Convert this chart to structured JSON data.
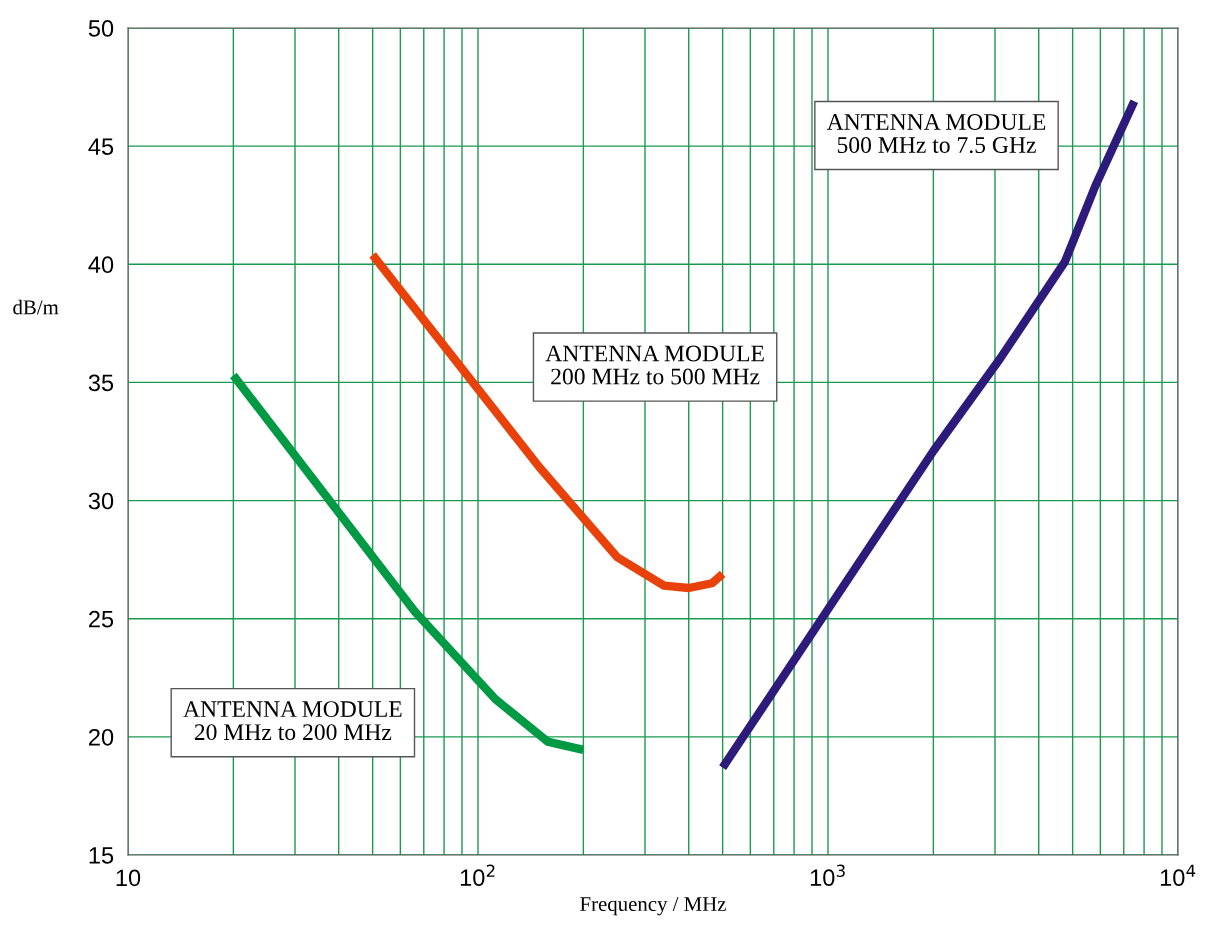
{
  "chart_data": {
    "type": "line",
    "xlabel": "Frequency / MHz",
    "ylabel": "dB/m",
    "log": "x",
    "grid": true,
    "marker": "none",
    "line_style": "solid",
    "xlim": [
      10,
      10000
    ],
    "ylim": [
      15,
      50
    ],
    "xticks": [
      10,
      {
        "value": 20,
        "label": null
      },
      {
        "value": 30,
        "label": null
      },
      {
        "value": 40,
        "label": null
      },
      {
        "value": 50,
        "label": null
      },
      {
        "value": 60,
        "label": null
      },
      {
        "value": 70,
        "label": null
      },
      {
        "value": 80,
        "label": null
      },
      {
        "value": 90,
        "label": null
      },
      {
        "value": 100,
        "label": "10$^{2}$"
      },
      {
        "value": 200,
        "label": null
      },
      {
        "value": 300,
        "label": null
      },
      {
        "value": 400,
        "label": null
      },
      {
        "value": 500,
        "label": null
      },
      {
        "value": 600,
        "label": null
      },
      {
        "value": 700,
        "label": null
      },
      {
        "value": 800,
        "label": null
      },
      {
        "value": 900,
        "label": null
      },
      {
        "value": 1000,
        "label": "10$^{3}$"
      },
      {
        "value": 2000,
        "label": null
      },
      {
        "value": 3000,
        "label": null
      },
      {
        "value": 4000,
        "label": null
      },
      {
        "value": 5000,
        "label": null
      },
      {
        "value": 6000,
        "label": null
      },
      {
        "value": 7000,
        "label": null
      },
      {
        "value": 8000,
        "label": null
      },
      {
        "value": 9000,
        "label": null
      },
      {
        "value": 10000,
        "label": "10$^{4}$"
      }
    ],
    "yticks": [
      15,
      20,
      25,
      30,
      35,
      40,
      45,
      50
    ],
    "series": [
      {
        "name": "ANTENNA MODULE\n20 MHz to 200 MHz",
        "color": "#009a44",
        "x": [
          20,
          66,
          112,
          158,
          200
        ],
        "values": [
          35.3,
          25.3,
          21.6,
          19.8,
          19.45
        ]
      },
      {
        "name": "ANTENNA MODULE\n200 MHz to 500 MHz",
        "color": "#e8410a",
        "x": [
          50,
          150,
          250,
          340,
          400,
          466,
          500
        ],
        "values": [
          40.4,
          31.4,
          27.6,
          26.4,
          26.3,
          26.5,
          26.9
        ]
      },
      {
        "name": "ANTENNA MODULE\n500 MHz to 7.5 GHz",
        "color": "#2e1a7a",
        "x": [
          500,
          1000,
          2000,
          3100,
          4750,
          5800,
          7500
        ],
        "values": [
          18.7,
          25.4,
          32.1,
          36,
          40.1,
          43.3,
          46.9
        ]
      }
    ]
  }
}
